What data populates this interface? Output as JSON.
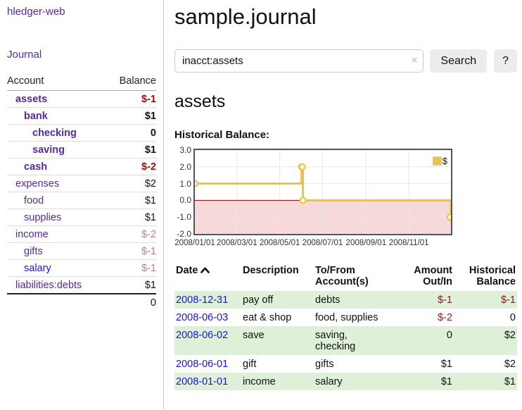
{
  "app": {
    "brand": "hledger-web"
  },
  "sidebar": {
    "journal_link": "Journal",
    "col_account": "Account",
    "col_balance": "Balance",
    "accounts": [
      {
        "name": "assets",
        "balance": "$-1"
      },
      {
        "name": "bank",
        "balance": "$1"
      },
      {
        "name": "checking",
        "balance": "0"
      },
      {
        "name": "saving",
        "balance": "$1"
      },
      {
        "name": "cash",
        "balance": "$-2"
      },
      {
        "name": "expenses",
        "balance": "$2"
      },
      {
        "name": "food",
        "balance": "$1"
      },
      {
        "name": "supplies",
        "balance": "$1"
      },
      {
        "name": "income",
        "balance": "$-2"
      },
      {
        "name": "gifts",
        "balance": "$-1"
      },
      {
        "name": "salary",
        "balance": "$-1"
      },
      {
        "name": "liabilities:debts",
        "balance": "$1"
      }
    ],
    "total": "0"
  },
  "main": {
    "title": "sample.journal",
    "search": {
      "value": "inacct:assets",
      "clear_icon": "×",
      "button": "Search",
      "help_button": "?"
    },
    "account_heading": "assets",
    "chart_label": "Historical Balance:"
  },
  "chart_data": {
    "type": "line",
    "title": "Historical Balance:",
    "x_start": "2008-01-01",
    "x_range_days": 365,
    "ylim": [
      -2,
      3
    ],
    "grid": true,
    "legend_position": "top-right",
    "series": [
      {
        "name": "$",
        "color": "#edc240",
        "step": true,
        "points": [
          {
            "date": "2008-01-01",
            "value": 1
          },
          {
            "date": "2008-06-01",
            "value": 2
          },
          {
            "date": "2008-06-02",
            "value": 2
          },
          {
            "date": "2008-06-03",
            "value": 0
          },
          {
            "date": "2008-12-31",
            "value": -1
          }
        ]
      }
    ],
    "y_ticks": [
      {
        "value": 3,
        "label": "3.0"
      },
      {
        "value": 2,
        "label": "2.0"
      },
      {
        "value": 1,
        "label": "1.0"
      },
      {
        "value": 0,
        "label": "0.0"
      },
      {
        "value": -1,
        "label": "-1.0"
      },
      {
        "value": -2,
        "label": "-2.0"
      }
    ],
    "x_ticks": [
      {
        "date": "2008-01-01",
        "label": "2008/01/01"
      },
      {
        "date": "2008-03-01",
        "label": "2008/03/01"
      },
      {
        "date": "2008-05-01",
        "label": "2008/05/01"
      },
      {
        "date": "2008-07-01",
        "label": "2008/07/01"
      },
      {
        "date": "2008-09-01",
        "label": "2008/09/01"
      },
      {
        "date": "2008-11-01",
        "label": "2008/11/01"
      }
    ],
    "negative_region_color": "#f8d9d9",
    "zero_line_color": "#8b0000",
    "gridline_color": "#e8e8e8"
  },
  "register": {
    "columns": {
      "date": "Date",
      "description": "Description",
      "accounts": "To/From Account(s)",
      "amount": "Amount Out/In",
      "balance": "Historical Balance"
    },
    "rows": [
      {
        "date": "2008-12-31",
        "description": "pay off",
        "accounts": "debts",
        "amount": "$-1",
        "balance": "$-1"
      },
      {
        "date": "2008-06-03",
        "description": "eat & shop",
        "accounts": "food, supplies",
        "amount": "$-2",
        "balance": "0"
      },
      {
        "date": "2008-06-02",
        "description": "save",
        "accounts": "saving, checking",
        "amount": "0",
        "balance": "$2"
      },
      {
        "date": "2008-06-01",
        "description": "gift",
        "accounts": "gifts",
        "amount": "$1",
        "balance": "$2"
      },
      {
        "date": "2008-01-01",
        "description": "income",
        "accounts": "salary",
        "amount": "$1",
        "balance": "$1"
      }
    ]
  },
  "colors": {
    "link_purple": "#5429a3",
    "link_blue": "#1717d6",
    "negative_strong": "#a00c0c",
    "negative_weak": "#c17d7d",
    "negative_table": "#991414",
    "row_green": "#dff0d8",
    "chart_line": "#edc240"
  }
}
